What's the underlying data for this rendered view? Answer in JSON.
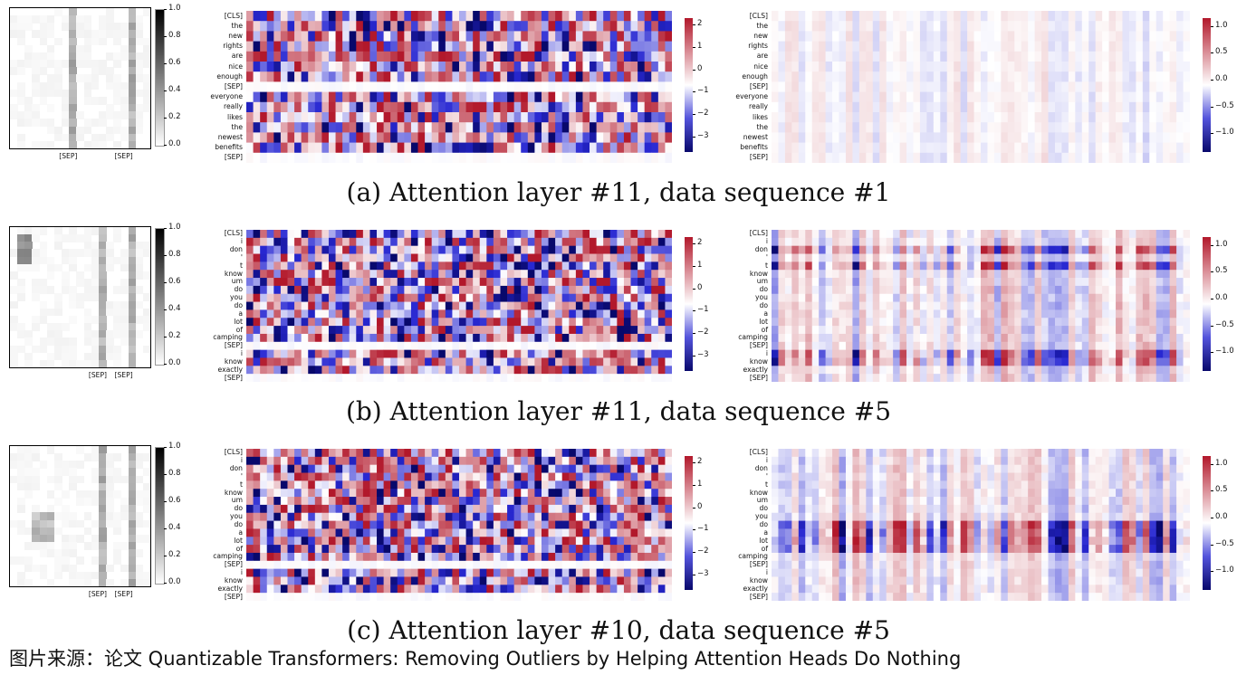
{
  "source_text": "图片来源：论文 Quantizable Transformers: Removing Outliers by Helping Attention Heads Do Nothing",
  "colors": {
    "red": "#b2182b",
    "white": "#ffffff",
    "blue": "#08086b"
  },
  "chart_data": [
    {
      "type": "heatmap",
      "caption": "(a) Attention layer #11, data sequence #1",
      "attention_map": {
        "colorbar_ticks": [
          "1.0",
          "0.8",
          "0.6",
          "0.4",
          "0.2",
          "0.0"
        ],
        "x_labels": [
          "[SEP]",
          "[SEP]"
        ],
        "highlight_columns": [
          8,
          16
        ]
      },
      "values_map": {
        "y_labels": [
          "[CLS]",
          "the",
          "new",
          "rights",
          "are",
          "nice",
          "enough",
          "[SEP]",
          "everyone",
          "really",
          "likes",
          "the",
          "newest",
          "benefits",
          "[SEP]"
        ],
        "colorbar_ticks": [
          "2",
          "1",
          "0",
          "−1",
          "−2",
          "−3"
        ],
        "vmin": -3,
        "vmax": 2.5,
        "intensity": 1.0,
        "flat_rows": [
          7,
          14
        ]
      },
      "output_map": {
        "y_labels": [
          "[CLS]",
          "the",
          "new",
          "rights",
          "are",
          "nice",
          "enough",
          "[SEP]",
          "everyone",
          "really",
          "likes",
          "the",
          "newest",
          "benefits",
          "[SEP]"
        ],
        "colorbar_ticks": [
          "1.0",
          "0.5",
          "0.0",
          "−0.5",
          "−1.0"
        ],
        "vmin": -1.25,
        "vmax": 1.25,
        "intensity": 0.15
      }
    },
    {
      "type": "heatmap",
      "caption": "(b) Attention layer #11, data sequence #5",
      "attention_map": {
        "colorbar_ticks": [
          "1.0",
          "0.8",
          "0.6",
          "0.4",
          "0.2",
          "0.0"
        ],
        "x_labels": [
          "[SEP]",
          "[SEP]"
        ],
        "highlight_columns": [
          12,
          16
        ]
      },
      "values_map": {
        "y_labels": [
          "[CLS]",
          "i",
          "don",
          "'",
          "t",
          "know",
          "um",
          "do",
          "you",
          "do",
          "a",
          "lot",
          "of",
          "camping",
          "[SEP]",
          "i",
          "know",
          "exactly",
          "[SEP]"
        ],
        "colorbar_ticks": [
          "2",
          "1",
          "0",
          "−1",
          "−2",
          "−3"
        ],
        "vmin": -3,
        "vmax": 2.5,
        "intensity": 1.0,
        "flat_rows": [
          14,
          18
        ]
      },
      "output_map": {
        "y_labels": [
          "[CLS]",
          "i",
          "don",
          "'",
          "t",
          "know",
          "um",
          "do",
          "you",
          "do",
          "a",
          "lot",
          "of",
          "camping",
          "[SEP]",
          "i",
          "know",
          "exactly",
          "[SEP]"
        ],
        "colorbar_ticks": [
          "1.0",
          "0.5",
          "0.0",
          "−0.5",
          "−1.0"
        ],
        "vmin": -1.25,
        "vmax": 1.25,
        "intensity": 0.35,
        "strong_rows": [
          2,
          4,
          15,
          16
        ]
      }
    },
    {
      "type": "heatmap",
      "caption": "(c) Attention layer #10, data sequence #5",
      "attention_map": {
        "colorbar_ticks": [
          "1.0",
          "0.8",
          "0.6",
          "0.4",
          "0.2",
          "0.0"
        ],
        "x_labels": [
          "[SEP]",
          "[SEP]"
        ],
        "highlight_columns": [
          12,
          16
        ]
      },
      "values_map": {
        "y_labels": [
          "[CLS]",
          "i",
          "don",
          "'",
          "t",
          "know",
          "um",
          "do",
          "you",
          "do",
          "a",
          "lot",
          "of",
          "camping",
          "[SEP]",
          "i",
          "know",
          "exactly",
          "[SEP]"
        ],
        "colorbar_ticks": [
          "2",
          "1",
          "0",
          "−1",
          "−2",
          "−3"
        ],
        "vmin": -3,
        "vmax": 2.5,
        "intensity": 1.0,
        "flat_rows": [
          14,
          18
        ]
      },
      "output_map": {
        "y_labels": [
          "[CLS]",
          "i",
          "don",
          "'",
          "t",
          "know",
          "um",
          "do",
          "you",
          "do",
          "a",
          "lot",
          "of",
          "camping",
          "[SEP]",
          "i",
          "know",
          "exactly",
          "[SEP]"
        ],
        "colorbar_ticks": [
          "1.0",
          "0.5",
          "0.0",
          "−0.5",
          "−1.0"
        ],
        "vmin": -1.25,
        "vmax": 1.25,
        "intensity": 0.3,
        "strong_rows": [
          9,
          10,
          11,
          12
        ]
      }
    }
  ]
}
